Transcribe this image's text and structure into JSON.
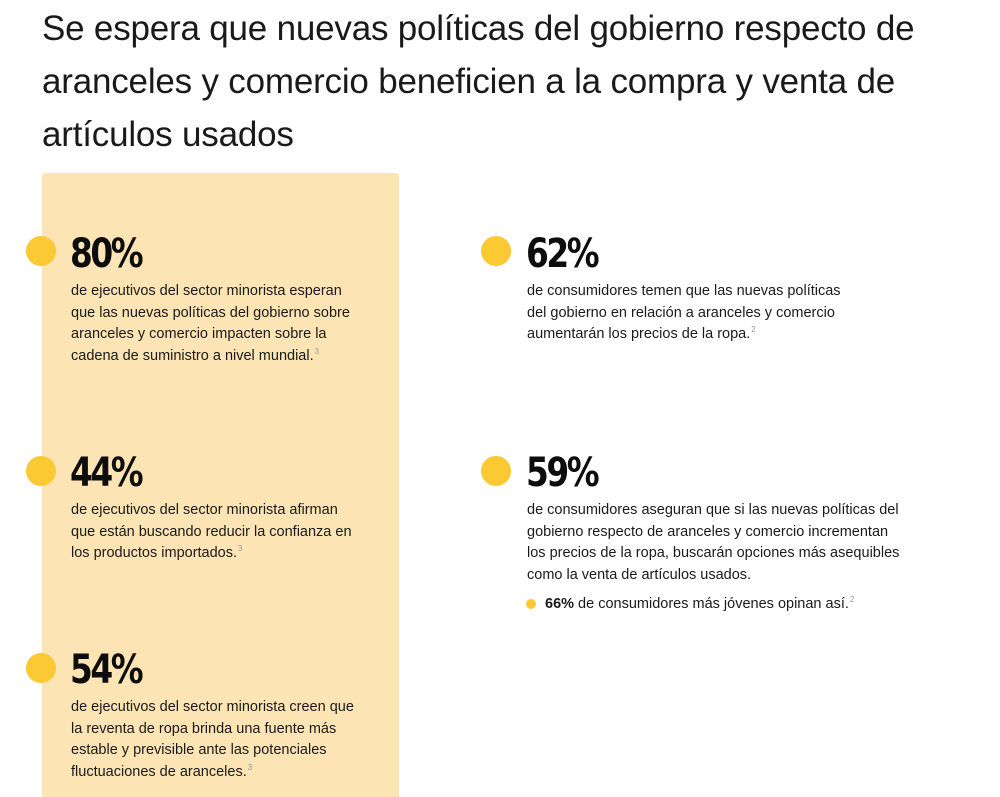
{
  "title": "Se espera que nuevas políticas del gobierno respecto de aranceles y comercio beneficien a la compra y venta de artículos usados",
  "colors": {
    "accent_dot": "#fbc934",
    "panel_background": "#fde4b4",
    "text": "#1a1a1a"
  },
  "stats": [
    {
      "value": "80%",
      "lines": [
        "de ejecutivos del sector minorista esperan",
        "que las nuevas políticas del gobierno sobre",
        "aranceles y comercio impacten sobre la",
        "cadena de suministro a nivel mundial."
      ],
      "footnote": "3"
    },
    {
      "value": "44%",
      "lines": [
        "de ejecutivos del sector minorista afirman",
        "que están buscando reducir la confianza en",
        "los productos importados."
      ],
      "footnote": "3"
    },
    {
      "value": "54%",
      "lines": [
        "de ejecutivos del sector minorista creen que",
        "la reventa de ropa brinda una fuente más",
        "estable y previsible ante las potenciales",
        "fluctuaciones de aranceles."
      ],
      "footnote": "3"
    },
    {
      "value": "62%",
      "lines": [
        "de consumidores temen que las nuevas políticas",
        "del gobierno en relación a aranceles y comercio",
        "aumentarán los precios de la ropa."
      ],
      "footnote": "2"
    },
    {
      "value": "59%",
      "lines": [
        "de consumidores aseguran que si las nuevas políticas del",
        "gobierno respecto de aranceles y comercio incrementan",
        "los precios de la ropa, buscarán opciones más asequibles",
        "como la venta de artículos usados."
      ],
      "footnote": ""
    }
  ],
  "sub_stat": {
    "value": "66%",
    "text": " de consumidores más jóvenes opinan así.",
    "footnote": "2"
  }
}
